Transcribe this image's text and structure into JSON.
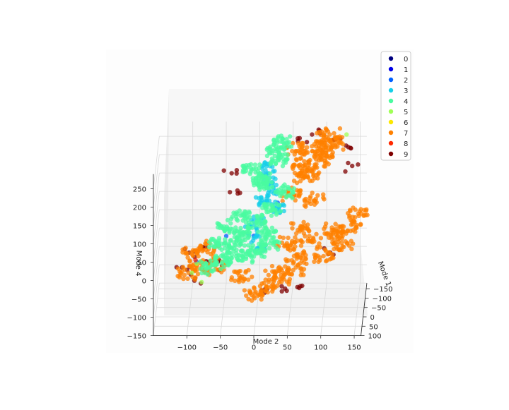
{
  "chart_data": {
    "type": "scatter",
    "projection": "3d",
    "title": "",
    "xlabel": "Mode 2",
    "ylabel": "Mode 1",
    "zlabel": "Mode 4",
    "xlim": [
      -150,
      160
    ],
    "ylim": [
      -180,
      100
    ],
    "zlim": [
      -150,
      290
    ],
    "x_ticks": [
      "−100",
      "−50",
      "0",
      "50",
      "100",
      "150"
    ],
    "y_ticks": [
      "−150",
      "−100",
      "−50",
      "0",
      "50",
      "100"
    ],
    "z_ticks": [
      "−150",
      "−100",
      "−50",
      "0",
      "50",
      "100",
      "150",
      "200",
      "250"
    ],
    "grid": true,
    "legend_position": "top-right",
    "series": [
      {
        "name": "0",
        "color": "#00007f",
        "points": []
      },
      {
        "name": "1",
        "color": "#0000e8",
        "points": []
      },
      {
        "name": "2",
        "color": "#0060ff",
        "points": [
          [
            -45,
            -20,
            60
          ],
          [
            -5,
            -60,
            40
          ],
          [
            30,
            -80,
            120
          ],
          [
            -90,
            -40,
            -20
          ]
        ]
      },
      {
        "name": "3",
        "color": "#16cfe8",
        "points": [
          [
            0,
            -60,
            80
          ],
          [
            20,
            -100,
            140
          ],
          [
            5,
            -40,
            20
          ],
          [
            15,
            -120,
            180
          ],
          [
            25,
            -90,
            100
          ],
          [
            -10,
            -70,
            60
          ],
          [
            10,
            -80,
            120
          ],
          [
            18,
            -110,
            160
          ],
          [
            -5,
            -50,
            40
          ],
          [
            12,
            -130,
            200
          ],
          [
            30,
            -100,
            100
          ],
          [
            5,
            -90,
            130
          ]
        ]
      },
      {
        "name": "4",
        "color": "#49fba0",
        "points": [
          [
            -60,
            -20,
            40
          ],
          [
            -40,
            -10,
            20
          ],
          [
            -20,
            -40,
            60
          ],
          [
            0,
            -60,
            80
          ],
          [
            20,
            -80,
            100
          ],
          [
            10,
            -100,
            160
          ],
          [
            -10,
            -120,
            190
          ],
          [
            30,
            -130,
            210
          ],
          [
            -50,
            0,
            0
          ],
          [
            -30,
            -30,
            40
          ],
          [
            0,
            -20,
            20
          ],
          [
            15,
            -50,
            50
          ],
          [
            -70,
            10,
            -10
          ],
          [
            5,
            -110,
            170
          ],
          [
            25,
            -140,
            230
          ],
          [
            -25,
            -70,
            90
          ],
          [
            40,
            -100,
            140
          ],
          [
            -15,
            -5,
            10
          ],
          [
            20,
            -40,
            30
          ],
          [
            -45,
            -50,
            70
          ],
          [
            35,
            -150,
            250
          ]
        ]
      },
      {
        "name": "5",
        "color": "#a0ff56",
        "points": [
          [
            -95,
            20,
            -20
          ],
          [
            -80,
            30,
            -40
          ],
          [
            -88,
            10,
            0
          ],
          [
            130,
            -170,
            260
          ]
        ]
      },
      {
        "name": "6",
        "color": "#fce700",
        "points": []
      },
      {
        "name": "7",
        "color": "#ff8000",
        "points": [
          [
            60,
            -120,
            200
          ],
          [
            80,
            -140,
            230
          ],
          [
            100,
            -160,
            250
          ],
          [
            70,
            -100,
            180
          ],
          [
            90,
            -130,
            210
          ],
          [
            110,
            -150,
            240
          ],
          [
            50,
            -80,
            140
          ],
          [
            120,
            -60,
            40
          ],
          [
            140,
            -80,
            60
          ],
          [
            130,
            -40,
            20
          ],
          [
            100,
            -30,
            0
          ],
          [
            80,
            -50,
            30
          ],
          [
            60,
            -20,
            10
          ],
          [
            -80,
            30,
            0
          ],
          [
            -100,
            20,
            -20
          ],
          [
            -60,
            40,
            10
          ],
          [
            40,
            30,
            -30
          ],
          [
            20,
            40,
            -50
          ],
          [
            0,
            50,
            -60
          ],
          [
            -20,
            20,
            -30
          ],
          [
            60,
            10,
            -10
          ],
          [
            75,
            -110,
            190
          ],
          [
            95,
            -145,
            225
          ],
          [
            85,
            -90,
            120
          ],
          [
            65,
            -60,
            60
          ],
          [
            45,
            -40,
            30
          ],
          [
            115,
            -70,
            50
          ],
          [
            150,
            -100,
            80
          ],
          [
            -95,
            0,
            20
          ],
          [
            -70,
            10,
            40
          ],
          [
            30,
            20,
            -20
          ],
          [
            55,
            -140,
            230
          ],
          [
            105,
            -170,
            260
          ]
        ]
      },
      {
        "name": "8",
        "color": "#ff2a00",
        "points": [
          [
            -90,
            10,
            10
          ]
        ]
      },
      {
        "name": "9",
        "color": "#7f0000",
        "points": [
          [
            -110,
            10,
            -10
          ],
          [
            -90,
            30,
            -30
          ],
          [
            -70,
            0,
            0
          ],
          [
            -100,
            -10,
            20
          ],
          [
            60,
            -170,
            250
          ],
          [
            90,
            -175,
            260
          ],
          [
            110,
            -160,
            250
          ],
          [
            130,
            -150,
            240
          ],
          [
            140,
            -120,
            200
          ],
          [
            -40,
            -120,
            180
          ],
          [
            -30,
            -90,
            140
          ],
          [
            70,
            30,
            -50
          ],
          [
            40,
            40,
            -60
          ],
          [
            110,
            -30,
            10
          ],
          [
            -50,
            20,
            0
          ],
          [
            10,
            45,
            -55
          ],
          [
            -80,
            -20,
            30
          ]
        ]
      }
    ]
  }
}
